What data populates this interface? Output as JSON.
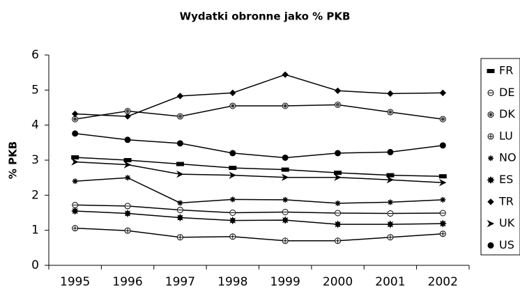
{
  "chart_data": {
    "type": "line",
    "title": "Wydatki obronne jako % PKB",
    "y_label": "% PKB",
    "categories": [
      "1995",
      "1996",
      "1997",
      "1998",
      "1999",
      "2000",
      "2001",
      "2002"
    ],
    "ylim": [
      0,
      6
    ],
    "yticks": [
      0,
      1,
      2,
      3,
      4,
      5,
      6
    ],
    "grid": false,
    "legend": "right",
    "series": [
      {
        "name": "FR",
        "color": "#000000",
        "marker": "dash",
        "values": [
          3.08,
          3.0,
          2.89,
          2.78,
          2.73,
          2.64,
          2.57,
          2.54
        ]
      },
      {
        "name": "DE",
        "color": "#000000",
        "marker": "circle-minus",
        "values": [
          1.72,
          1.69,
          1.58,
          1.5,
          1.52,
          1.49,
          1.48,
          1.49
        ]
      },
      {
        "name": "DK",
        "color": "#000000",
        "marker": "target",
        "values": [
          4.17,
          4.4,
          4.25,
          4.55,
          4.55,
          4.58,
          4.37,
          4.17
        ]
      },
      {
        "name": "LU",
        "color": "#000000",
        "marker": "circle-plus",
        "values": [
          1.06,
          0.99,
          0.8,
          0.82,
          0.7,
          0.7,
          0.8,
          0.9
        ]
      },
      {
        "name": "NO",
        "color": "#000000",
        "marker": "asterisk",
        "values": [
          2.4,
          2.5,
          1.78,
          1.88,
          1.87,
          1.77,
          1.8,
          1.87
        ]
      },
      {
        "name": "ES",
        "color": "#000000",
        "marker": "burst",
        "values": [
          1.55,
          1.48,
          1.36,
          1.28,
          1.29,
          1.17,
          1.17,
          1.19
        ]
      },
      {
        "name": "TR",
        "color": "#000000",
        "marker": "diamond",
        "values": [
          4.32,
          4.25,
          4.83,
          4.92,
          5.44,
          4.98,
          4.9,
          4.92
        ]
      },
      {
        "name": "UK",
        "color": "#000000",
        "marker": "arrow",
        "values": [
          2.95,
          2.87,
          2.6,
          2.57,
          2.51,
          2.51,
          2.44,
          2.36
        ]
      },
      {
        "name": "US",
        "color": "#000000",
        "marker": "dot",
        "values": [
          3.76,
          3.58,
          3.48,
          3.2,
          3.07,
          3.2,
          3.23,
          3.42
        ]
      }
    ]
  }
}
